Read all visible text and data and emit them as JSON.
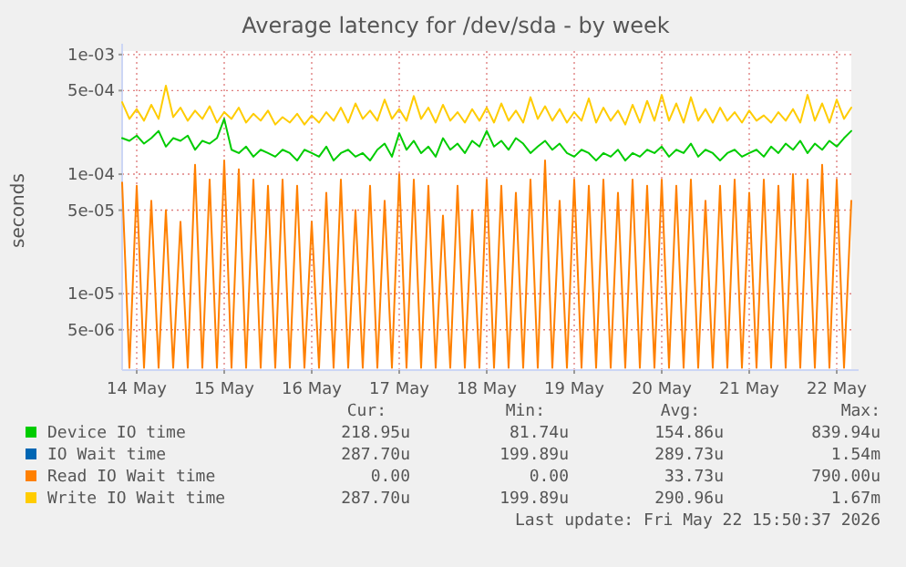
{
  "chart_data": {
    "type": "line",
    "title": "Average latency for /dev/sda - by week",
    "ylabel": "seconds",
    "log": "y",
    "grid": true,
    "legend": "bottom",
    "xlim": [
      "2026-05-13T20:00",
      "2026-05-22T04:00"
    ],
    "xticks": [
      {
        "value": "2026-05-14",
        "label": "14 May"
      },
      {
        "value": "2026-05-15",
        "label": "15 May"
      },
      {
        "value": "2026-05-16",
        "label": "16 May"
      },
      {
        "value": "2026-05-17",
        "label": "17 May"
      },
      {
        "value": "2026-05-18",
        "label": "18 May"
      },
      {
        "value": "2026-05-19",
        "label": "19 May"
      },
      {
        "value": "2026-05-20",
        "label": "20 May"
      },
      {
        "value": "2026-05-21",
        "label": "21 May"
      },
      {
        "value": "2026-05-22",
        "label": "22 May"
      }
    ],
    "ylim": [
      2.3e-06,
      0.00107
    ],
    "yticks": [
      {
        "value": 5e-06,
        "label": "5e-06"
      },
      {
        "value": 1e-05,
        "label": "1e-05"
      },
      {
        "value": 5e-05,
        "label": "5e-05"
      },
      {
        "value": 0.0001,
        "label": "1e-04"
      },
      {
        "value": 0.0005,
        "label": "5e-04"
      },
      {
        "value": 0.001,
        "label": "1e-03"
      }
    ],
    "x": [
      "2026-05-13T20:00",
      "2026-05-13T22:00",
      "2026-05-14T00:00",
      "2026-05-14T02:00",
      "2026-05-14T04:00",
      "2026-05-14T06:00",
      "2026-05-14T08:00",
      "2026-05-14T10:00",
      "2026-05-14T12:00",
      "2026-05-14T14:00",
      "2026-05-14T16:00",
      "2026-05-14T18:00",
      "2026-05-14T20:00",
      "2026-05-14T22:00",
      "2026-05-15T00:00",
      "2026-05-15T02:00",
      "2026-05-15T04:00",
      "2026-05-15T06:00",
      "2026-05-15T08:00",
      "2026-05-15T10:00",
      "2026-05-15T12:00",
      "2026-05-15T14:00",
      "2026-05-15T16:00",
      "2026-05-15T18:00",
      "2026-05-15T20:00",
      "2026-05-15T22:00",
      "2026-05-16T00:00",
      "2026-05-16T02:00",
      "2026-05-16T04:00",
      "2026-05-16T06:00",
      "2026-05-16T08:00",
      "2026-05-16T10:00",
      "2026-05-16T12:00",
      "2026-05-16T14:00",
      "2026-05-16T16:00",
      "2026-05-16T18:00",
      "2026-05-16T20:00",
      "2026-05-16T22:00",
      "2026-05-17T00:00",
      "2026-05-17T02:00",
      "2026-05-17T04:00",
      "2026-05-17T06:00",
      "2026-05-17T08:00",
      "2026-05-17T10:00",
      "2026-05-17T12:00",
      "2026-05-17T14:00",
      "2026-05-17T16:00",
      "2026-05-17T18:00",
      "2026-05-17T20:00",
      "2026-05-17T22:00",
      "2026-05-18T00:00",
      "2026-05-18T02:00",
      "2026-05-18T04:00",
      "2026-05-18T06:00",
      "2026-05-18T08:00",
      "2026-05-18T10:00",
      "2026-05-18T12:00",
      "2026-05-18T14:00",
      "2026-05-18T16:00",
      "2026-05-18T18:00",
      "2026-05-18T20:00",
      "2026-05-18T22:00",
      "2026-05-19T00:00",
      "2026-05-19T02:00",
      "2026-05-19T04:00",
      "2026-05-19T06:00",
      "2026-05-19T08:00",
      "2026-05-19T10:00",
      "2026-05-19T12:00",
      "2026-05-19T14:00",
      "2026-05-19T16:00",
      "2026-05-19T18:00",
      "2026-05-19T20:00",
      "2026-05-19T22:00",
      "2026-05-20T00:00",
      "2026-05-20T02:00",
      "2026-05-20T04:00",
      "2026-05-20T06:00",
      "2026-05-20T08:00",
      "2026-05-20T10:00",
      "2026-05-20T12:00",
      "2026-05-20T14:00",
      "2026-05-20T16:00",
      "2026-05-20T18:00",
      "2026-05-20T20:00",
      "2026-05-20T22:00",
      "2026-05-21T00:00",
      "2026-05-21T02:00",
      "2026-05-21T04:00",
      "2026-05-21T06:00",
      "2026-05-21T08:00",
      "2026-05-21T10:00",
      "2026-05-21T12:00",
      "2026-05-21T14:00",
      "2026-05-21T16:00",
      "2026-05-21T18:00",
      "2026-05-21T20:00",
      "2026-05-21T22:00",
      "2026-05-22T00:00",
      "2026-05-22T02:00",
      "2026-05-22T04:00"
    ],
    "series": [
      {
        "name": "Device IO time",
        "color": "#00cc00",
        "values": [
          0.0002,
          0.00019,
          0.00021,
          0.00018,
          0.0002,
          0.00023,
          0.00017,
          0.0002,
          0.00019,
          0.00021,
          0.00016,
          0.00019,
          0.00018,
          0.0002,
          0.00029,
          0.00016,
          0.00015,
          0.00017,
          0.00014,
          0.00016,
          0.00015,
          0.00014,
          0.00016,
          0.00015,
          0.00013,
          0.00016,
          0.00015,
          0.00014,
          0.00017,
          0.00013,
          0.00015,
          0.00016,
          0.00014,
          0.00015,
          0.00013,
          0.00016,
          0.00018,
          0.00014,
          0.00022,
          0.00016,
          0.00019,
          0.00015,
          0.00017,
          0.00014,
          0.0002,
          0.00016,
          0.00018,
          0.00015,
          0.00019,
          0.00017,
          0.00023,
          0.00017,
          0.00019,
          0.00016,
          0.0002,
          0.00018,
          0.00015,
          0.00017,
          0.00019,
          0.00016,
          0.00018,
          0.00015,
          0.00014,
          0.00016,
          0.00015,
          0.00013,
          0.00015,
          0.00014,
          0.00016,
          0.00013,
          0.00015,
          0.00014,
          0.00016,
          0.00015,
          0.00017,
          0.00014,
          0.00016,
          0.00015,
          0.00018,
          0.00014,
          0.00016,
          0.00015,
          0.00013,
          0.00015,
          0.00016,
          0.00014,
          0.00015,
          0.00016,
          0.00014,
          0.00017,
          0.00015,
          0.00018,
          0.00016,
          0.00019,
          0.00015,
          0.00018,
          0.00016,
          0.00019,
          0.00017,
          0.0002,
          0.00023
        ]
      },
      {
        "name": "IO Wait time",
        "color": "#0066b3",
        "values": [
          null,
          null,
          null,
          null,
          null,
          null,
          null,
          null,
          null,
          null,
          null,
          null,
          null,
          null,
          null,
          null,
          null,
          null,
          null,
          null,
          null,
          null,
          null,
          null,
          null,
          null,
          null,
          null,
          null,
          null,
          null,
          null,
          null,
          null,
          null,
          null,
          null,
          null,
          null,
          null,
          null,
          null,
          null,
          null,
          null,
          null,
          null,
          null,
          null,
          null,
          null,
          null,
          null,
          null,
          null,
          null,
          null,
          null,
          null,
          null,
          null,
          null,
          null,
          null,
          null,
          null,
          null,
          null,
          null,
          null,
          null,
          null,
          null,
          null,
          null,
          null,
          null,
          null,
          null,
          null,
          null,
          null,
          null,
          null,
          null,
          null,
          null,
          null,
          null,
          null,
          null,
          null,
          null,
          null,
          null,
          null,
          null,
          null,
          null,
          null,
          null
        ]
      },
      {
        "name": "Read IO Wait time",
        "color": "#ff8000",
        "values": [
          8.5e-05,
          2.4e-06,
          8e-05,
          2.4e-06,
          6e-05,
          2.4e-06,
          5e-05,
          2.4e-06,
          4e-05,
          2.4e-06,
          0.00012,
          2.4e-06,
          9e-05,
          2.4e-06,
          0.00013,
          2.4e-06,
          0.00011,
          2.4e-06,
          9e-05,
          2.4e-06,
          8e-05,
          2.4e-06,
          9e-05,
          2.4e-06,
          8e-05,
          2.4e-06,
          4e-05,
          2.4e-06,
          7e-05,
          2.4e-06,
          9e-05,
          2.4e-06,
          5e-05,
          2.4e-06,
          8e-05,
          2.4e-06,
          6e-05,
          2.4e-06,
          0.0001,
          2.4e-06,
          9e-05,
          2.4e-06,
          8e-05,
          2.4e-06,
          4.5e-05,
          2.4e-06,
          8e-05,
          2.4e-06,
          5e-05,
          2.4e-06,
          9e-05,
          2.4e-06,
          8e-05,
          2.4e-06,
          7e-05,
          2.4e-06,
          9e-05,
          2.4e-06,
          0.00013,
          2.4e-06,
          6e-05,
          2.4e-06,
          9e-05,
          2.4e-06,
          8e-05,
          2.4e-06,
          9e-05,
          2.4e-06,
          7e-05,
          2.4e-06,
          9e-05,
          2.4e-06,
          8e-05,
          2.4e-06,
          9e-05,
          2.4e-06,
          8e-05,
          2.4e-06,
          9e-05,
          2.4e-06,
          6e-05,
          2.4e-06,
          8e-05,
          2.4e-06,
          9e-05,
          2.4e-06,
          7e-05,
          2.4e-06,
          9e-05,
          2.4e-06,
          8e-05,
          2.4e-06,
          0.0001,
          2.4e-06,
          9e-05,
          2.4e-06,
          0.00012,
          2.4e-06,
          9e-05,
          2.4e-06,
          6e-05
        ]
      },
      {
        "name": "Write IO Wait time",
        "color": "#ffcc00",
        "values": [
          0.0004,
          0.00029,
          0.00035,
          0.00028,
          0.00038,
          0.00029,
          0.00055,
          0.0003,
          0.00036,
          0.00028,
          0.00034,
          0.00029,
          0.00037,
          0.00027,
          0.00033,
          0.00029,
          0.00036,
          0.00027,
          0.00032,
          0.00028,
          0.00034,
          0.00026,
          0.0003,
          0.00027,
          0.00032,
          0.00026,
          0.00031,
          0.00027,
          0.00033,
          0.00028,
          0.00036,
          0.00027,
          0.00039,
          0.00029,
          0.00034,
          0.00028,
          0.00042,
          0.00029,
          0.00035,
          0.00028,
          0.00045,
          0.00029,
          0.00036,
          0.00027,
          0.00038,
          0.00028,
          0.00033,
          0.00027,
          0.00035,
          0.00028,
          0.00036,
          0.00027,
          0.00039,
          0.00028,
          0.00034,
          0.00027,
          0.00044,
          0.00029,
          0.00037,
          0.00028,
          0.00035,
          0.00027,
          0.00033,
          0.00028,
          0.00043,
          0.00027,
          0.00036,
          0.00028,
          0.00034,
          0.00026,
          0.00038,
          0.00027,
          0.00041,
          0.00028,
          0.00046,
          0.00028,
          0.00039,
          0.00027,
          0.00044,
          0.00028,
          0.00035,
          0.00027,
          0.00036,
          0.00028,
          0.00033,
          0.00027,
          0.00034,
          0.00028,
          0.00031,
          0.00027,
          0.00033,
          0.00028,
          0.00035,
          0.00027,
          0.00046,
          0.00028,
          0.00039,
          0.00027,
          0.00042,
          0.00029,
          0.00036
        ]
      }
    ],
    "annotations": [
      "Cur:",
      "Min:",
      "Avg:",
      "Max:",
      "218.95u",
      "81.74u",
      "154.86u",
      "839.94u",
      "287.70u",
      "199.89u",
      "289.73u",
      "1.54m",
      "0.00",
      "0.00",
      "33.73u",
      "790.00u",
      "287.70u",
      "199.89u",
      "290.96u",
      "1.67m",
      "Last update: Fri May 22 15:50:37 2026"
    ]
  }
}
